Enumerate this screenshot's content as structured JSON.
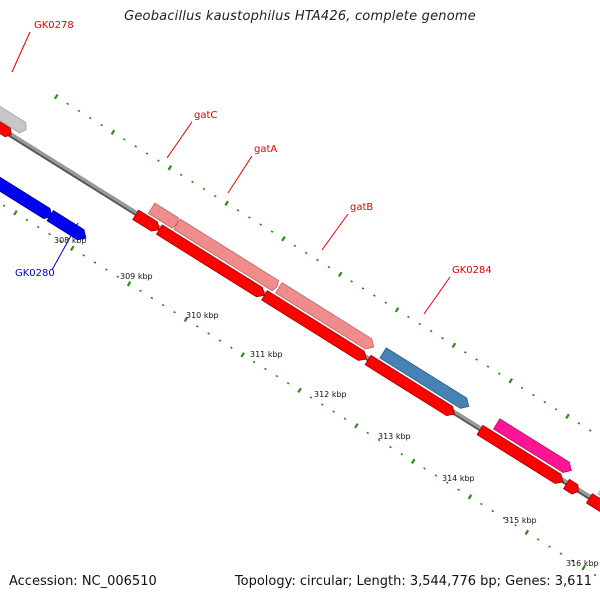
{
  "title": "Geobacillus kaustophilus HTA426, complete genome",
  "footer": {
    "accession": "Accession: NC_006510",
    "summary": "Topology: circular; Length: 3,544,776 bp; Genes: 3,611"
  },
  "colors": {
    "backbone": "#7a7a7a",
    "tick_green": "#2a8a1a",
    "cds_red": "#ff0000",
    "gene_pink": "#f08080",
    "gene_blue_dark": "#0000ee",
    "gene_steel": "#4682b4",
    "gene_magenta": "#ff1493",
    "gene_grey": "#c8c8c8"
  },
  "ticks": [
    "308 kbp",
    "309 kbp",
    "310 kbp",
    "311 kbp",
    "312 kbp",
    "313 kbp",
    "314 kbp",
    "315 kbp",
    "316 kbp"
  ],
  "gene_labels": [
    {
      "text": "GK0278",
      "color": "#e00000"
    },
    {
      "text": "gatC",
      "color": "#e00000"
    },
    {
      "text": "gatA",
      "color": "#e00000"
    },
    {
      "text": "gatB",
      "color": "#e00000"
    },
    {
      "text": "GK0284",
      "color": "#e00000"
    },
    {
      "text": "GK0280",
      "color": "#0000d0"
    }
  ]
}
